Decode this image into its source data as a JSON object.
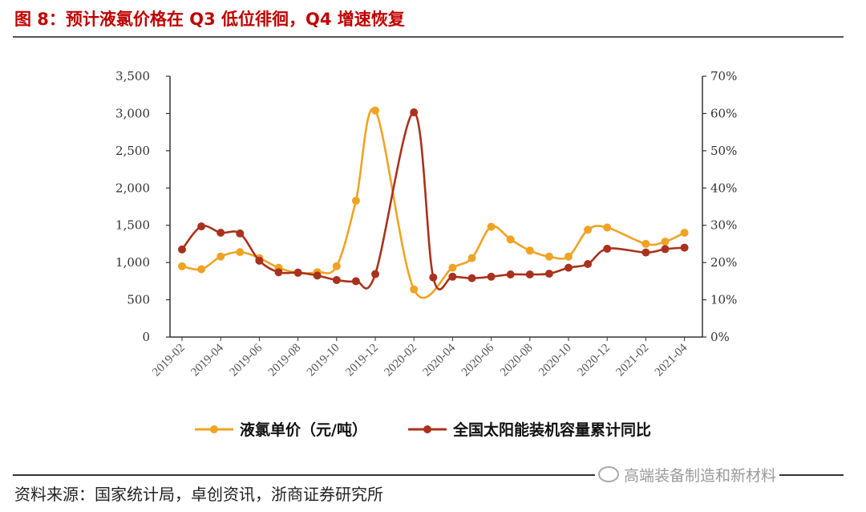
{
  "header": {
    "title": "图 8：预计液氯价格在 Q3 低位徘徊，Q4 增速恢复"
  },
  "footer": {
    "source": "资料来源：国家统计局，卓创资讯，浙商证券研究所"
  },
  "watermark": {
    "text": "高端装备制造和新材料"
  },
  "colors": {
    "price": "#f0a323",
    "yoy": "#a8321d",
    "axis": "#333333"
  },
  "chart_data": {
    "type": "line",
    "x": [
      "2019-02",
      "2019-03",
      "2019-04",
      "2019-05",
      "2019-06",
      "2019-07",
      "2019-08",
      "2019-09",
      "2019-10",
      "2019-11",
      "2019-12",
      "2020-01",
      "2020-02",
      "2020-03",
      "2020-04",
      "2020-05",
      "2020-06",
      "2020-07",
      "2020-08",
      "2020-09",
      "2020-10",
      "2020-11",
      "2020-12",
      "2021-01",
      "2021-02",
      "2021-03",
      "2021-04"
    ],
    "xtick_labels": [
      "2019-02",
      "2019-04",
      "2019-06",
      "2019-08",
      "2019-10",
      "2019-12",
      "2020-02",
      "2020-04",
      "2020-06",
      "2020-08",
      "2020-10",
      "2020-12",
      "2021-02",
      "2021-04"
    ],
    "y_left": {
      "lim": [
        0,
        3500
      ],
      "ticks": [
        "0",
        "500",
        "1,000",
        "1,500",
        "2,000",
        "2,500",
        "3,000",
        "3,500"
      ]
    },
    "y_right": {
      "lim": [
        0,
        70
      ],
      "ticks": [
        "0%",
        "10%",
        "20%",
        "30%",
        "40%",
        "50%",
        "60%",
        "70%"
      ]
    },
    "series": [
      {
        "name": "液氯单价（元/吨）",
        "axis": "left",
        "color": "#f0a323",
        "values": [
          950,
          910,
          1080,
          1140,
          1060,
          930,
          860,
          870,
          950,
          1830,
          3040,
          null,
          640,
          null,
          930,
          1060,
          1480,
          1310,
          1160,
          1080,
          1080,
          1440,
          1470,
          null,
          1250,
          1280,
          1400
        ]
      },
      {
        "name": "全国太阳能装机容量累计同比",
        "axis": "right",
        "color": "#a8321d",
        "values": [
          23.5,
          29.7,
          28.0,
          27.8,
          20.5,
          17.4,
          17.3,
          16.5,
          15.3,
          15.0,
          16.9,
          null,
          60.3,
          16.0,
          16.2,
          15.8,
          16.2,
          16.8,
          16.8,
          17.0,
          18.6,
          19.6,
          23.7,
          null,
          22.7,
          23.6,
          24.0
        ]
      }
    ],
    "legend": [
      "液氯单价（元/吨）",
      "全国太阳能装机容量累计同比"
    ],
    "legend_position": "bottom",
    "grid": false
  }
}
